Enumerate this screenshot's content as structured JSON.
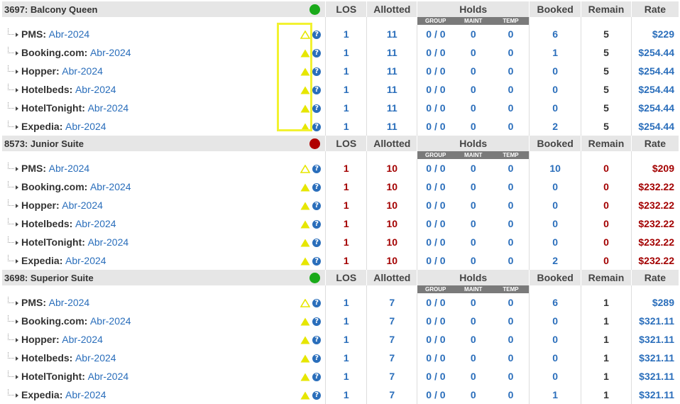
{
  "headers": {
    "los": "LOS",
    "allotted": "Allotted",
    "holds": "Holds",
    "group": "GROUP",
    "maint": "MAINT",
    "temp": "TEMP",
    "booked": "Booked",
    "remain": "Remain",
    "rate": "Rate"
  },
  "colors": {
    "green": "#1aaa1a",
    "red": "#b00000",
    "blue": "#2a6ebb",
    "highlight": "#f2f230",
    "warn_yellow": "#e6e600"
  },
  "rooms": [
    {
      "title": "3697: Balcony Queen",
      "status": "green",
      "color_class": "blue",
      "channels": [
        {
          "label": "PMS:",
          "period": "Abr-2024",
          "warn": "outline",
          "los": "1",
          "allotted": "11",
          "group": "0 / 0",
          "maint": "0",
          "temp": "0",
          "booked": "6",
          "remain": "5",
          "rate": "$229"
        },
        {
          "label": "Booking.com:",
          "period": "Abr-2024",
          "warn": "filled",
          "los": "1",
          "allotted": "11",
          "group": "0 / 0",
          "maint": "0",
          "temp": "0",
          "booked": "1",
          "remain": "5",
          "rate": "$254.44"
        },
        {
          "label": "Hopper:",
          "period": "Abr-2024",
          "warn": "filled",
          "los": "1",
          "allotted": "11",
          "group": "0 / 0",
          "maint": "0",
          "temp": "0",
          "booked": "0",
          "remain": "5",
          "rate": "$254.44"
        },
        {
          "label": "Hotelbeds:",
          "period": "Abr-2024",
          "warn": "filled",
          "los": "1",
          "allotted": "11",
          "group": "0 / 0",
          "maint": "0",
          "temp": "0",
          "booked": "0",
          "remain": "5",
          "rate": "$254.44"
        },
        {
          "label": "HotelTonight:",
          "period": "Abr-2024",
          "warn": "filled",
          "los": "1",
          "allotted": "11",
          "group": "0 / 0",
          "maint": "0",
          "temp": "0",
          "booked": "0",
          "remain": "5",
          "rate": "$254.44"
        },
        {
          "label": "Expedia:",
          "period": "Abr-2024",
          "warn": "filled",
          "los": "1",
          "allotted": "11",
          "group": "0 / 0",
          "maint": "0",
          "temp": "0",
          "booked": "2",
          "remain": "5",
          "rate": "$254.44"
        }
      ]
    },
    {
      "title": "8573: Junior Suite",
      "status": "red",
      "color_class": "red",
      "channels": [
        {
          "label": "PMS:",
          "period": "Abr-2024",
          "warn": "outline",
          "los": "1",
          "allotted": "10",
          "group": "0 / 0",
          "maint": "0",
          "temp": "0",
          "booked": "10",
          "remain": "0",
          "rate": "$209"
        },
        {
          "label": "Booking.com:",
          "period": "Abr-2024",
          "warn": "filled",
          "los": "1",
          "allotted": "10",
          "group": "0 / 0",
          "maint": "0",
          "temp": "0",
          "booked": "0",
          "remain": "0",
          "rate": "$232.22"
        },
        {
          "label": "Hopper:",
          "period": "Abr-2024",
          "warn": "filled",
          "los": "1",
          "allotted": "10",
          "group": "0 / 0",
          "maint": "0",
          "temp": "0",
          "booked": "0",
          "remain": "0",
          "rate": "$232.22"
        },
        {
          "label": "Hotelbeds:",
          "period": "Abr-2024",
          "warn": "filled",
          "los": "1",
          "allotted": "10",
          "group": "0 / 0",
          "maint": "0",
          "temp": "0",
          "booked": "0",
          "remain": "0",
          "rate": "$232.22"
        },
        {
          "label": "HotelTonight:",
          "period": "Abr-2024",
          "warn": "filled",
          "los": "1",
          "allotted": "10",
          "group": "0 / 0",
          "maint": "0",
          "temp": "0",
          "booked": "0",
          "remain": "0",
          "rate": "$232.22"
        },
        {
          "label": "Expedia:",
          "period": "Abr-2024",
          "warn": "filled",
          "los": "1",
          "allotted": "10",
          "group": "0 / 0",
          "maint": "0",
          "temp": "0",
          "booked": "2",
          "remain": "0",
          "rate": "$232.22"
        }
      ]
    },
    {
      "title": "3698: Superior Suite",
      "status": "green",
      "color_class": "blue",
      "channels": [
        {
          "label": "PMS:",
          "period": "Abr-2024",
          "warn": "outline",
          "los": "1",
          "allotted": "7",
          "group": "0 / 0",
          "maint": "0",
          "temp": "0",
          "booked": "6",
          "remain": "1",
          "rate": "$289"
        },
        {
          "label": "Booking.com:",
          "period": "Abr-2024",
          "warn": "filled",
          "los": "1",
          "allotted": "7",
          "group": "0 / 0",
          "maint": "0",
          "temp": "0",
          "booked": "0",
          "remain": "1",
          "rate": "$321.11"
        },
        {
          "label": "Hopper:",
          "period": "Abr-2024",
          "warn": "filled",
          "los": "1",
          "allotted": "7",
          "group": "0 / 0",
          "maint": "0",
          "temp": "0",
          "booked": "0",
          "remain": "1",
          "rate": "$321.11"
        },
        {
          "label": "Hotelbeds:",
          "period": "Abr-2024",
          "warn": "filled",
          "los": "1",
          "allotted": "7",
          "group": "0 / 0",
          "maint": "0",
          "temp": "0",
          "booked": "0",
          "remain": "1",
          "rate": "$321.11"
        },
        {
          "label": "HotelTonight:",
          "period": "Abr-2024",
          "warn": "filled",
          "los": "1",
          "allotted": "7",
          "group": "0 / 0",
          "maint": "0",
          "temp": "0",
          "booked": "0",
          "remain": "1",
          "rate": "$321.11"
        },
        {
          "label": "Expedia:",
          "period": "Abr-2024",
          "warn": "filled",
          "los": "1",
          "allotted": "7",
          "group": "0 / 0",
          "maint": "0",
          "temp": "0",
          "booked": "1",
          "remain": "1",
          "rate": "$321.11"
        }
      ]
    }
  ]
}
